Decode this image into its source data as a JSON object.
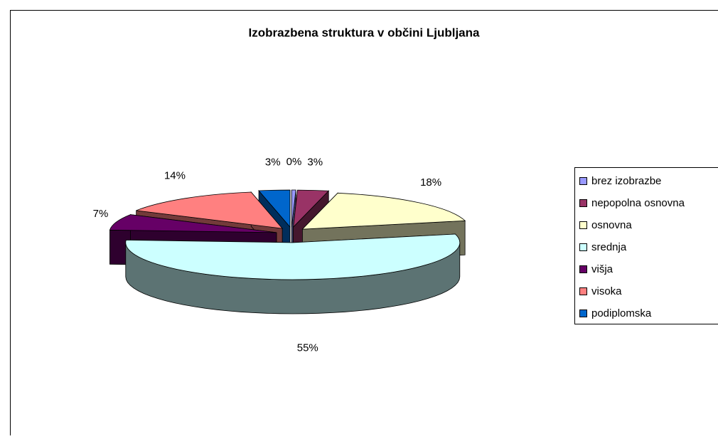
{
  "chart_data": {
    "type": "pie3d",
    "title": "Izobrazbena struktura v občini Ljubljana",
    "categories": [
      "brez izobrazbe",
      "nepopolna osnovna",
      "osnovna",
      "srednja",
      "višja",
      "visoka",
      "podiplomska"
    ],
    "values": [
      0.4,
      3,
      18,
      55,
      7,
      14,
      3
    ],
    "value_labels": [
      "0%",
      "3%",
      "18%",
      "55%",
      "7%",
      "14%",
      "3%"
    ],
    "colors": [
      "#9999ff",
      "#993366",
      "#ffffcc",
      "#ccffff",
      "#660066",
      "#ff8080",
      "#0066cc"
    ],
    "legend": "right"
  }
}
